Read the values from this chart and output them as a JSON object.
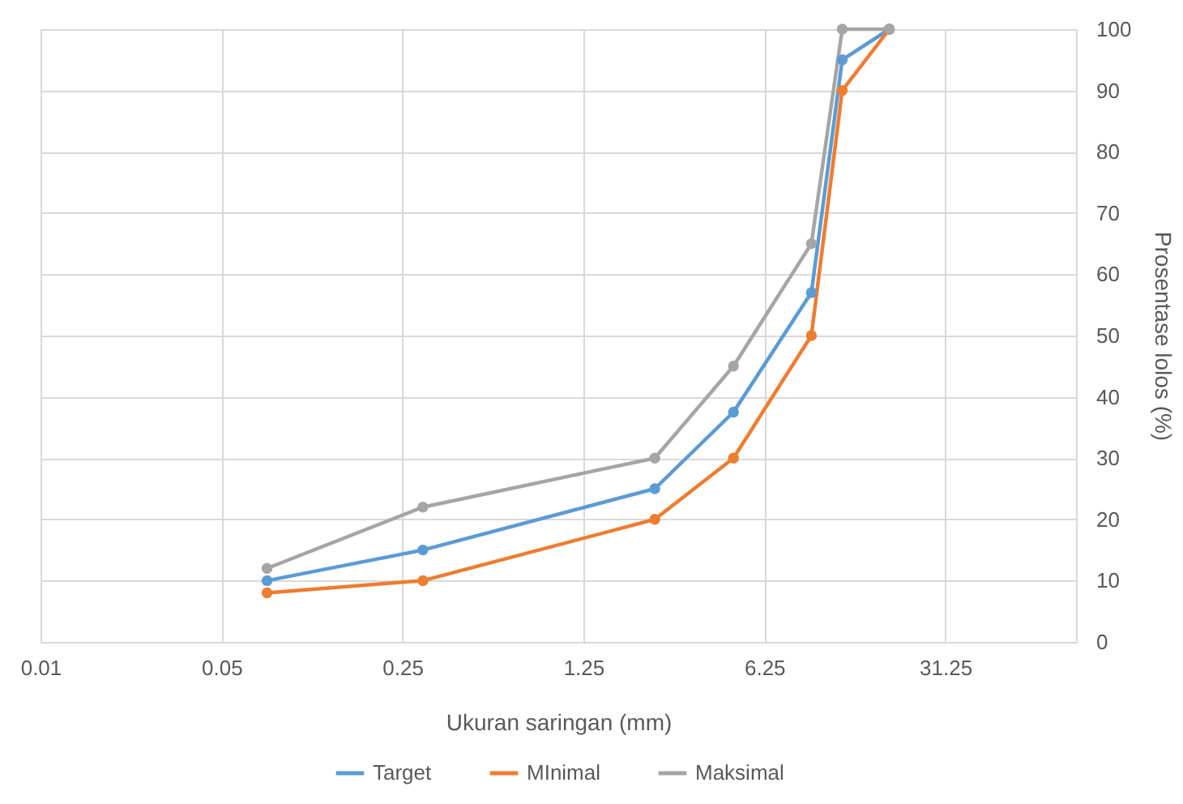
{
  "chart_data": {
    "type": "line",
    "xlabel": "Ukuran saringan (mm)",
    "ylabel": "Prosentase lolos (%)",
    "x": [
      0.075,
      0.3,
      2.36,
      4.75,
      9.5,
      12.5,
      19
    ],
    "series": [
      {
        "name": "Target",
        "color": "#5b9bd5",
        "values": [
          10,
          15,
          25,
          37.5,
          57,
          95,
          100
        ]
      },
      {
        "name": "MInimal",
        "color": "#ed7d31",
        "values": [
          8,
          10,
          20,
          30,
          50,
          90,
          100
        ]
      },
      {
        "name": "Maksimal",
        "color": "#a5a5a5",
        "values": [
          12,
          22,
          30,
          45,
          65,
          100,
          100
        ]
      }
    ],
    "log": "x",
    "xlim": [
      0.01,
      100
    ],
    "xticks": [
      0.01,
      0.05,
      0.25,
      1.25,
      6.25,
      31.25
    ],
    "ylim": [
      0,
      100
    ],
    "yticks": [
      0,
      10,
      20,
      30,
      40,
      50,
      60,
      70,
      80,
      90,
      100
    ],
    "grid": true,
    "legend": "bottom",
    "marker": "circle",
    "line_style": "solid"
  }
}
